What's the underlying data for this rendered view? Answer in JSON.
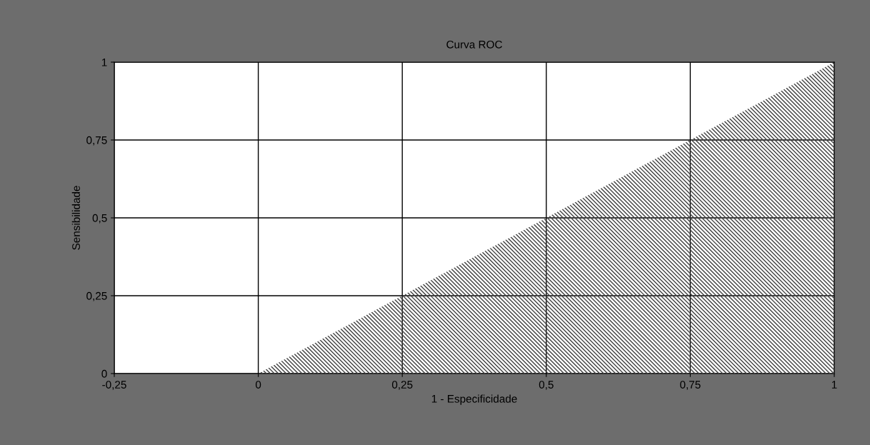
{
  "chart_data": {
    "type": "area",
    "title": "Curva ROC",
    "xlabel": "1 - Especificidade",
    "ylabel": "Sensibilidade",
    "series": [
      {
        "color": "#404040",
        "x": [
          0,
          1
        ],
        "values": [
          0,
          1
        ]
      }
    ],
    "xlim": [
      -0.25,
      1
    ],
    "ylim": [
      0,
      1
    ],
    "xticks": [
      {
        "value": -0.25,
        "label": "-0,25"
      },
      0,
      {
        "value": 0.25,
        "label": "0,25"
      },
      {
        "value": 0.5,
        "label": "0,5"
      },
      {
        "value": 0.75,
        "label": "0,75"
      },
      1
    ],
    "yticks": [
      0,
      {
        "value": 0.25,
        "label": "0,25"
      },
      {
        "value": 0.5,
        "label": "0,5"
      },
      {
        "value": 0.75,
        "label": "0,75"
      },
      1
    ],
    "grid": true
  }
}
